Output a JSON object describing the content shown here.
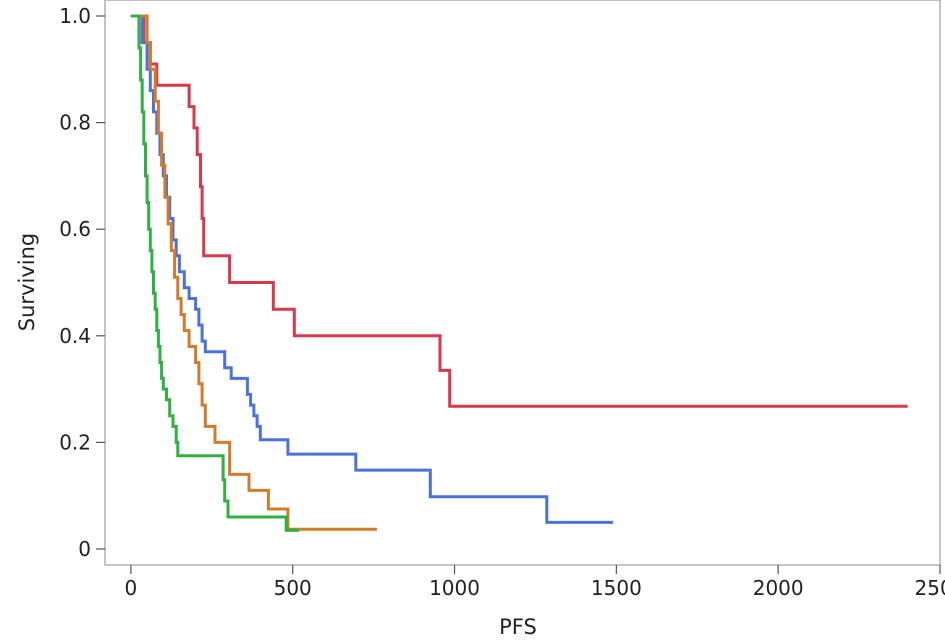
{
  "chart_data": {
    "type": "line",
    "step": true,
    "title": "",
    "xlabel": "PFS",
    "ylabel": "Surviving",
    "xlim": [
      -80,
      2500
    ],
    "ylim": [
      -0.03,
      1.03
    ],
    "x_ticks": [
      0,
      500,
      1000,
      1500,
      2000,
      2500
    ],
    "y_ticks": [
      0,
      0.2,
      0.4,
      0.6,
      0.8,
      1.0
    ],
    "x_tick_labels": [
      "0",
      "500",
      "1000",
      "1500",
      "2000",
      "2500"
    ],
    "y_tick_labels": [
      "0",
      "0.2",
      "0.4",
      "0.6",
      "0.8",
      "1.0"
    ],
    "grid": false,
    "legend": "none",
    "series": [
      {
        "color": "#d6394b",
        "points": [
          [
            0,
            1.0
          ],
          [
            30,
            1.0
          ],
          [
            40,
            0.95
          ],
          [
            60,
            0.91
          ],
          [
            80,
            0.87
          ],
          [
            170,
            0.87
          ],
          [
            180,
            0.83
          ],
          [
            195,
            0.79
          ],
          [
            205,
            0.74
          ],
          [
            215,
            0.68
          ],
          [
            220,
            0.62
          ],
          [
            225,
            0.55
          ],
          [
            300,
            0.55
          ],
          [
            305,
            0.5
          ],
          [
            430,
            0.5
          ],
          [
            440,
            0.45
          ],
          [
            500,
            0.45
          ],
          [
            505,
            0.4
          ],
          [
            950,
            0.4
          ],
          [
            955,
            0.335
          ],
          [
            980,
            0.335
          ],
          [
            985,
            0.268
          ],
          [
            2400,
            0.268
          ]
        ]
      },
      {
        "color": "#4a72d9",
        "points": [
          [
            0,
            1.0
          ],
          [
            25,
            1.0
          ],
          [
            35,
            0.95
          ],
          [
            50,
            0.9
          ],
          [
            60,
            0.86
          ],
          [
            70,
            0.82
          ],
          [
            80,
            0.78
          ],
          [
            90,
            0.74
          ],
          [
            100,
            0.7
          ],
          [
            110,
            0.66
          ],
          [
            120,
            0.62
          ],
          [
            130,
            0.58
          ],
          [
            140,
            0.55
          ],
          [
            150,
            0.52
          ],
          [
            165,
            0.49
          ],
          [
            180,
            0.47
          ],
          [
            200,
            0.45
          ],
          [
            210,
            0.42
          ],
          [
            220,
            0.39
          ],
          [
            230,
            0.37
          ],
          [
            280,
            0.37
          ],
          [
            290,
            0.34
          ],
          [
            310,
            0.32
          ],
          [
            350,
            0.32
          ],
          [
            360,
            0.29
          ],
          [
            370,
            0.27
          ],
          [
            380,
            0.25
          ],
          [
            390,
            0.23
          ],
          [
            400,
            0.205
          ],
          [
            480,
            0.205
          ],
          [
            485,
            0.178
          ],
          [
            690,
            0.178
          ],
          [
            695,
            0.148
          ],
          [
            920,
            0.148
          ],
          [
            925,
            0.098
          ],
          [
            1280,
            0.098
          ],
          [
            1285,
            0.05
          ],
          [
            1490,
            0.05
          ]
        ]
      },
      {
        "color": "#d27b2a",
        "points": [
          [
            0,
            1.0
          ],
          [
            40,
            1.0
          ],
          [
            50,
            0.95
          ],
          [
            60,
            0.9
          ],
          [
            75,
            0.84
          ],
          [
            85,
            0.78
          ],
          [
            95,
            0.72
          ],
          [
            105,
            0.66
          ],
          [
            115,
            0.61
          ],
          [
            125,
            0.56
          ],
          [
            135,
            0.51
          ],
          [
            145,
            0.47
          ],
          [
            155,
            0.44
          ],
          [
            165,
            0.41
          ],
          [
            180,
            0.38
          ],
          [
            200,
            0.35
          ],
          [
            210,
            0.31
          ],
          [
            220,
            0.27
          ],
          [
            230,
            0.23
          ],
          [
            250,
            0.23
          ],
          [
            260,
            0.2
          ],
          [
            300,
            0.2
          ],
          [
            305,
            0.14
          ],
          [
            360,
            0.14
          ],
          [
            365,
            0.11
          ],
          [
            420,
            0.11
          ],
          [
            425,
            0.075
          ],
          [
            480,
            0.075
          ],
          [
            485,
            0.037
          ],
          [
            760,
            0.037
          ]
        ]
      },
      {
        "color": "#2fb043",
        "points": [
          [
            0,
            1.0
          ],
          [
            20,
            1.0
          ],
          [
            25,
            0.94
          ],
          [
            30,
            0.88
          ],
          [
            35,
            0.82
          ],
          [
            40,
            0.76
          ],
          [
            45,
            0.7
          ],
          [
            50,
            0.65
          ],
          [
            55,
            0.6
          ],
          [
            60,
            0.56
          ],
          [
            65,
            0.52
          ],
          [
            70,
            0.48
          ],
          [
            75,
            0.45
          ],
          [
            80,
            0.41
          ],
          [
            85,
            0.38
          ],
          [
            90,
            0.35
          ],
          [
            95,
            0.32
          ],
          [
            100,
            0.3
          ],
          [
            110,
            0.28
          ],
          [
            120,
            0.25
          ],
          [
            130,
            0.23
          ],
          [
            140,
            0.2
          ],
          [
            145,
            0.175
          ],
          [
            280,
            0.175
          ],
          [
            285,
            0.13
          ],
          [
            290,
            0.09
          ],
          [
            300,
            0.06
          ],
          [
            320,
            0.06
          ],
          [
            475,
            0.06
          ],
          [
            480,
            0.035
          ],
          [
            520,
            0.035
          ]
        ]
      }
    ]
  }
}
